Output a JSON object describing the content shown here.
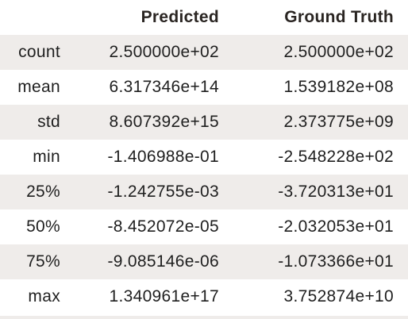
{
  "table": {
    "index_header": "",
    "columns": [
      "Predicted",
      "Ground Truth"
    ],
    "rows": [
      {
        "label": "count",
        "values": [
          "2.500000e+02",
          "2.500000e+02"
        ]
      },
      {
        "label": "mean",
        "values": [
          "6.317346e+14",
          "1.539182e+08"
        ]
      },
      {
        "label": "std",
        "values": [
          "8.607392e+15",
          "2.373775e+09"
        ]
      },
      {
        "label": "min",
        "values": [
          "-1.406988e-01",
          "-2.548228e+02"
        ]
      },
      {
        "label": "25%",
        "values": [
          "-1.242755e-03",
          "-3.720313e+01"
        ]
      },
      {
        "label": "50%",
        "values": [
          "-8.452072e-05",
          "-2.032053e+01"
        ]
      },
      {
        "label": "75%",
        "values": [
          "-9.085146e-06",
          "-1.073366e+01"
        ]
      },
      {
        "label": "max",
        "values": [
          "1.340961e+17",
          "3.752874e+10"
        ]
      }
    ]
  },
  "colors": {
    "stripe": "#efecea",
    "background": "#ffffff",
    "text": "#1f1f1f"
  }
}
